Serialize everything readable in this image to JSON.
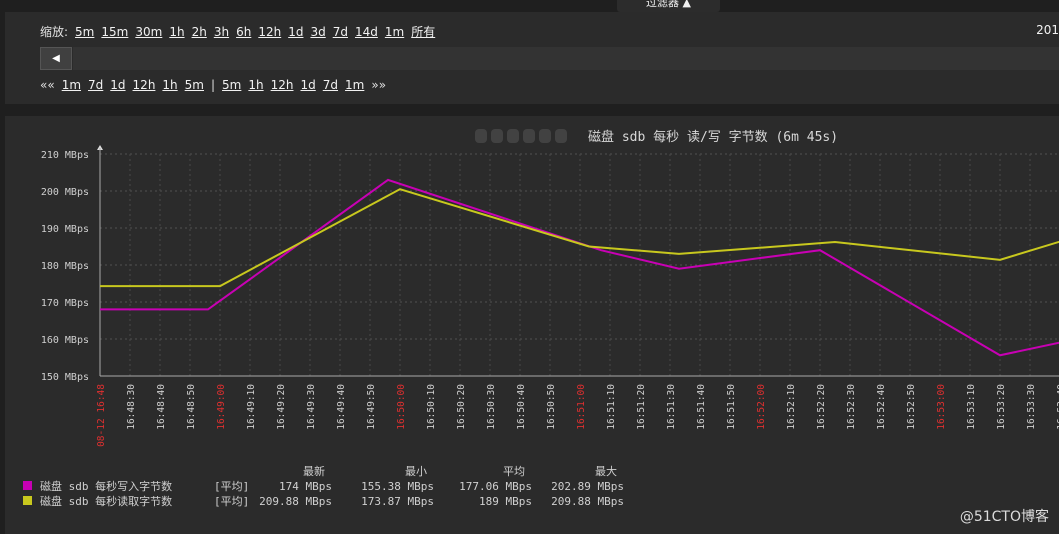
{
  "filter_tab": {
    "label": "过滤器 ▲"
  },
  "zoom": {
    "label": "缩放:",
    "options": [
      "5m",
      "15m",
      "30m",
      "1h",
      "2h",
      "3h",
      "6h",
      "12h",
      "1d",
      "3d",
      "7d",
      "14d",
      "1m",
      "所有"
    ],
    "date_partial": "201"
  },
  "scroll_left_icon": "◀",
  "nav": {
    "back_all": "««",
    "back": [
      "1m",
      "7d",
      "1d",
      "12h",
      "1h",
      "5m"
    ],
    "separator": "|",
    "forward": [
      "5m",
      "1h",
      "12h",
      "1d",
      "7d",
      "1m"
    ],
    "forward_all": "»»"
  },
  "chart_data": {
    "type": "line",
    "title": "磁盘 sdb 每秒 读/写 字节数 (6m 45s)",
    "ylim": [
      150,
      210
    ],
    "y_ticks": [
      "150 MBps",
      "160 MBps",
      "170 MBps",
      "180 MBps",
      "190 MBps",
      "200 MBps",
      "210 MBps"
    ],
    "x_ticks": [
      "08-12 16:48",
      "16:48:30",
      "16:48:40",
      "16:48:50",
      "16:49:00",
      "16:49:10",
      "16:49:20",
      "16:49:30",
      "16:49:40",
      "16:49:50",
      "16:50:00",
      "16:50:10",
      "16:50:20",
      "16:50:30",
      "16:50:40",
      "16:50:50",
      "16:51:00",
      "16:51:10",
      "16:51:20",
      "16:51:30",
      "16:51:40",
      "16:51:50",
      "16:52:00",
      "16:52:10",
      "16:52:20",
      "16:52:30",
      "16:52:40",
      "16:52:50",
      "16:53:00",
      "16:53:10",
      "16:53:20",
      "16:53:30",
      "16:53:40"
    ],
    "x_tick_highlight": [
      "08-12 16:48",
      "16:49:00",
      "16:50:00",
      "16:51:00",
      "16:52:00",
      "16:53:00"
    ],
    "series": [
      {
        "name": "磁盘 sdb 每秒写入字节数",
        "color": "#c800b4",
        "x_sec": [
          0,
          36,
          96,
          167,
          193,
          240,
          300,
          343,
          375
        ],
        "values": [
          168.0,
          168.0,
          203.0,
          184.0,
          179.0,
          184.0,
          155.6,
          163.0,
          167.0
        ],
        "stat_func": "[平均]",
        "latest": "174 MBps",
        "min": "155.38 MBps",
        "avg": "177.06 MBps",
        "max": "202.89 MBps"
      },
      {
        "name": "磁盘 sdb 每秒读取字节数",
        "color": "#c8c81e",
        "x_sec": [
          0,
          40,
          100,
          163,
          193,
          245,
          300,
          343,
          375
        ],
        "values": [
          174.3,
          174.3,
          200.5,
          185.0,
          183.0,
          186.2,
          181.4,
          192.0,
          197.0
        ],
        "stat_func": "[平均]",
        "latest": "209.88 MBps",
        "min": "173.87 MBps",
        "avg": "189 MBps",
        "max": "209.88 MBps"
      }
    ],
    "legend_headers": {
      "latest": "最新",
      "min": "最小",
      "avg": "平均",
      "max": "最大"
    }
  },
  "watermark": "@51CTO博客"
}
